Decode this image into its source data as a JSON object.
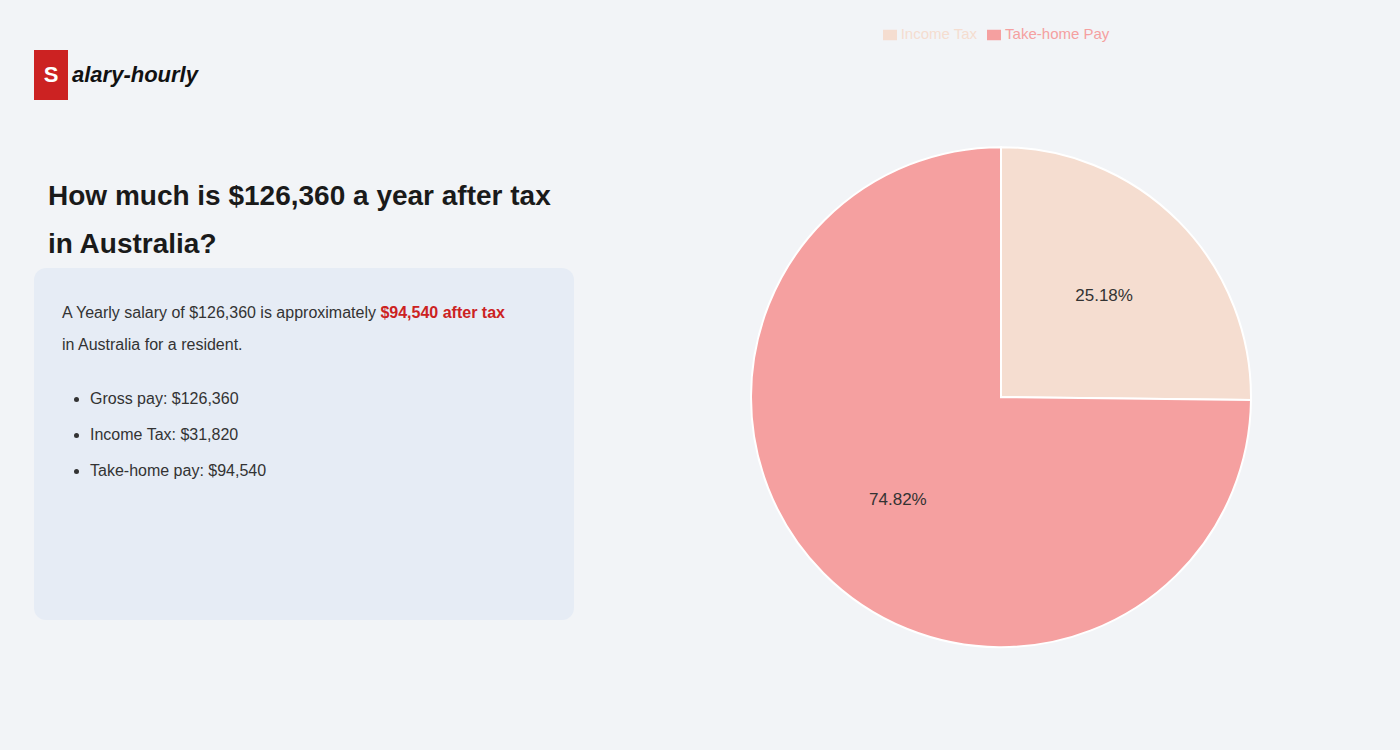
{
  "chart_data": {
    "type": "pie",
    "title": "How much is $126,360 a year after tax in Australia?",
    "categories": [
      "Income Tax",
      "Take-home Pay"
    ],
    "values": [
      25.18,
      74.82
    ],
    "value_labels": [
      "25.18%",
      "74.82%"
    ],
    "data_labels": true,
    "colors": [
      "#f5ddd0",
      "#f5a0a0"
    ],
    "legend": "top",
    "annotations": [
      {
        "text": "S",
        "color": "#ffffff"
      },
      {
        "text": "alary-hourly",
        "color": "#111111"
      },
      {
        "text": "A Yearly salary of $126,360 is approximately ",
        "color": "#333333"
      },
      {
        "text": "$94,540 after tax",
        "color": "#cc2222"
      },
      {
        "text": "in Australia for a resident.",
        "color": "#333333"
      },
      {
        "text": "Gross pay: $126,360",
        "color": "#333333"
      },
      {
        "text": "Income Tax: $31,820",
        "color": "#333333"
      },
      {
        "text": "Take-home pay: $94,540",
        "color": "#333333"
      }
    ]
  }
}
